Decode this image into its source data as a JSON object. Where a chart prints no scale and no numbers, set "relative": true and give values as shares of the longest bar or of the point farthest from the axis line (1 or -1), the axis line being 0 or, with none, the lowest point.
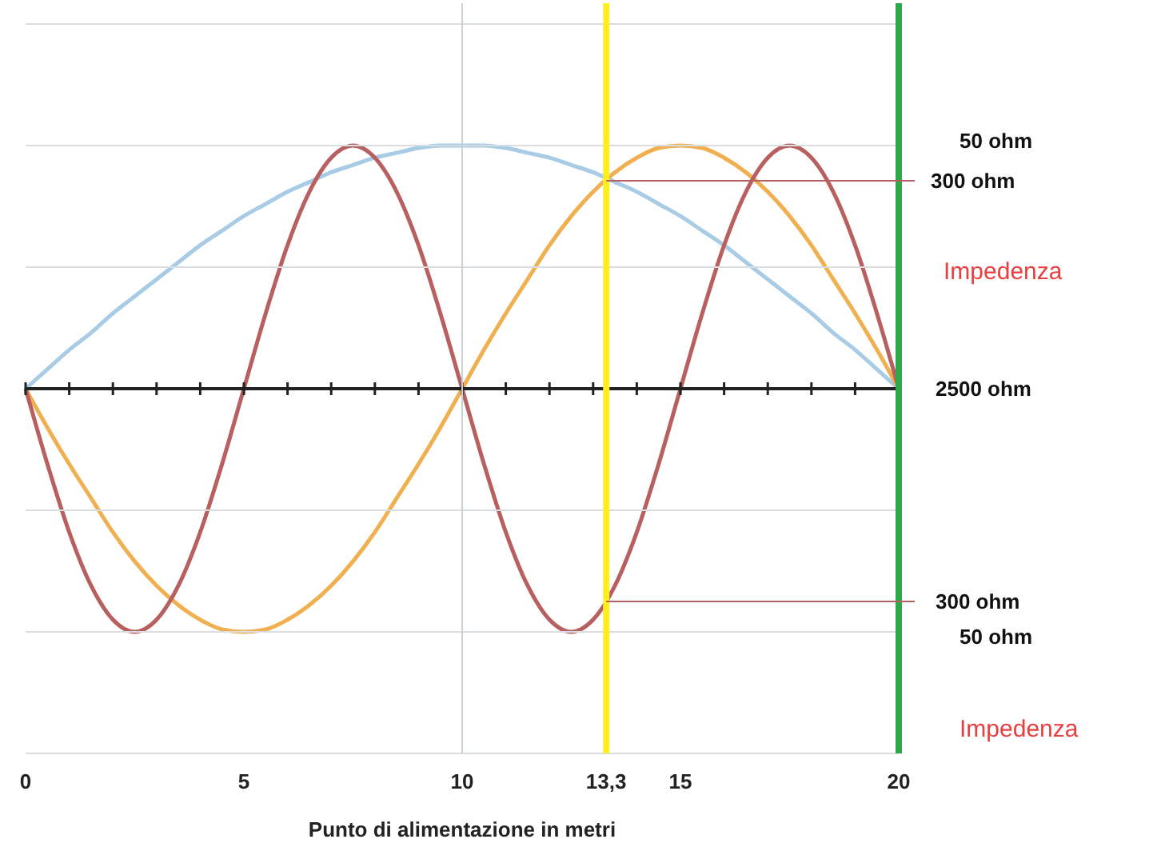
{
  "chart_data": {
    "type": "line",
    "relative": true,
    "xlabel": "Punto di alimentazione in metri",
    "xlim": [
      0,
      20
    ],
    "xticks": [
      0,
      5,
      10,
      {
        "value": 13.3,
        "label": "13,3"
      },
      15,
      20
    ],
    "marker": "none",
    "line_style": "solid",
    "x": [
      0,
      0.5,
      1,
      1.5,
      2,
      2.5,
      3,
      3.5,
      4,
      4.5,
      5,
      5.5,
      6,
      6.5,
      7,
      7.5,
      8,
      8.5,
      9,
      9.5,
      10,
      10.5,
      11,
      11.5,
      12,
      12.5,
      13,
      13.5,
      14,
      14.5,
      15,
      15.5,
      16,
      16.5,
      17,
      17.5,
      18,
      18.5,
      19,
      19.5,
      20
    ],
    "series": [
      {
        "color": "#a8cce6",
        "values": [
          0,
          0.08,
          0.16,
          0.23,
          0.31,
          0.38,
          0.45,
          0.52,
          0.59,
          0.65,
          0.71,
          0.76,
          0.81,
          0.85,
          0.89,
          0.92,
          0.95,
          0.97,
          0.99,
          1,
          1,
          1,
          0.99,
          0.97,
          0.95,
          0.92,
          0.89,
          0.85,
          0.81,
          0.76,
          0.71,
          0.65,
          0.59,
          0.52,
          0.45,
          0.38,
          0.31,
          0.23,
          0.16,
          0.08,
          0
        ]
      },
      {
        "color": "#f0b050",
        "values": [
          0,
          -0.16,
          -0.31,
          -0.45,
          -0.59,
          -0.71,
          -0.81,
          -0.89,
          -0.95,
          -0.99,
          -1,
          -0.99,
          -0.95,
          -0.89,
          -0.81,
          -0.71,
          -0.59,
          -0.45,
          -0.31,
          -0.16,
          0,
          0.16,
          0.31,
          0.45,
          0.59,
          0.71,
          0.81,
          0.89,
          0.95,
          0.99,
          1,
          0.99,
          0.95,
          0.89,
          0.81,
          0.71,
          0.59,
          0.45,
          0.31,
          0.16,
          0
        ]
      },
      {
        "color": "#b86060",
        "values": [
          0,
          -0.31,
          -0.59,
          -0.81,
          -0.95,
          -1,
          -0.95,
          -0.81,
          -0.59,
          -0.31,
          0,
          0.31,
          0.59,
          0.81,
          0.95,
          1,
          0.95,
          0.81,
          0.59,
          0.31,
          0,
          -0.31,
          -0.59,
          -0.81,
          -0.95,
          -1,
          -0.95,
          -0.81,
          -0.59,
          -0.31,
          0,
          0.31,
          0.59,
          0.81,
          0.95,
          1,
          0.95,
          0.81,
          0.59,
          0.31,
          0
        ]
      }
    ],
    "ref_lines": [
      {
        "axis": "y",
        "value": 1.5,
        "color": "#d8dde2"
      },
      {
        "axis": "y",
        "value": 1,
        "color": "#d8dde2"
      },
      {
        "axis": "y",
        "value": 0.5,
        "color": "#d8dde2"
      },
      {
        "axis": "y",
        "value": -0.5,
        "color": "#d8dde2"
      },
      {
        "axis": "y",
        "value": -1,
        "color": "#d8dde2"
      },
      {
        "axis": "y",
        "value": -1.5,
        "color": "#d8dde2"
      },
      {
        "axis": "x",
        "value": 10,
        "color": "#c8d0d8"
      },
      {
        "axis": "x",
        "value": 13.3,
        "color": "#ffee22"
      },
      {
        "axis": "x",
        "value": 20,
        "color": "#2ea84a"
      }
    ],
    "annotations": [
      "50 ohm",
      "300 ohm",
      "Impedenza",
      "2500  ohm",
      "300 ohm",
      "50 ohm",
      "Impedenza"
    ]
  }
}
